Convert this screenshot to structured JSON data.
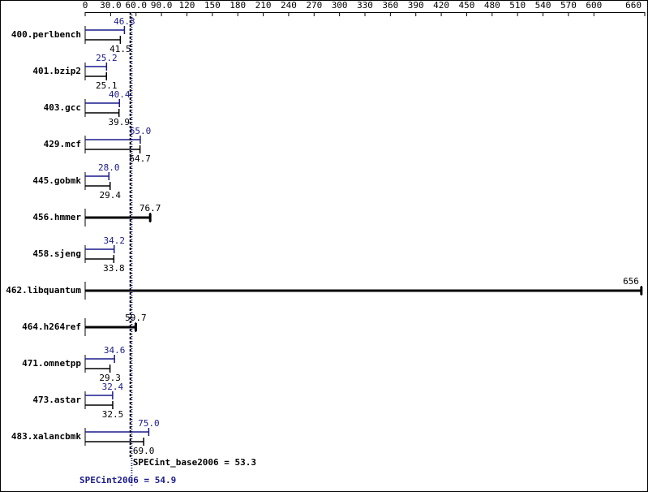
{
  "chart_data": {
    "type": "bar",
    "orientation": "horizontal",
    "categories": [
      "400.perlbench",
      "401.bzip2",
      "403.gcc",
      "429.mcf",
      "445.gobmk",
      "456.hmmer",
      "458.sjeng",
      "462.libquantum",
      "464.h264ref",
      "471.omnetpp",
      "473.astar",
      "483.xalancbmk"
    ],
    "series": [
      {
        "name": "SPECint2006",
        "color": "#1a1a8c",
        "values": [
          46.3,
          25.2,
          40.4,
          65.0,
          28.0,
          null,
          34.2,
          null,
          null,
          34.6,
          32.4,
          75.0
        ],
        "value_labels": [
          "46.3",
          "25.2",
          "40.4",
          "65.0",
          "28.0",
          null,
          "34.2",
          null,
          null,
          "34.6",
          "32.4",
          "75.0"
        ]
      },
      {
        "name": "SPECint_base2006",
        "color": "#000000",
        "values": [
          41.5,
          25.1,
          39.9,
          64.7,
          29.4,
          76.7,
          33.8,
          656,
          59.7,
          29.3,
          32.5,
          69.0
        ],
        "value_labels": [
          "41.5",
          "25.1",
          "39.9",
          "64.7",
          "29.4",
          "76.7",
          "33.8",
          "656",
          "59.7",
          "29.3",
          "32.5",
          "69.0"
        ]
      }
    ],
    "xlim": [
      0,
      660
    ],
    "xticks": [
      0,
      {
        "value": 30,
        "label": "30.0"
      },
      {
        "value": 60,
        "label": "60.0"
      },
      {
        "value": 90,
        "label": "90.0"
      },
      120,
      150,
      180,
      210,
      240,
      270,
      300,
      330,
      360,
      390,
      420,
      450,
      480,
      510,
      540,
      570,
      600,
      660
    ],
    "reference_lines": [
      {
        "label": "SPECint_base2006 = 53.3",
        "value": 53.3,
        "color": "#000000",
        "dash": "3,2"
      },
      {
        "label": "SPECint2006 = 54.9",
        "value": 54.9,
        "color": "#1a1a8c",
        "dash": "1,2"
      }
    ]
  }
}
